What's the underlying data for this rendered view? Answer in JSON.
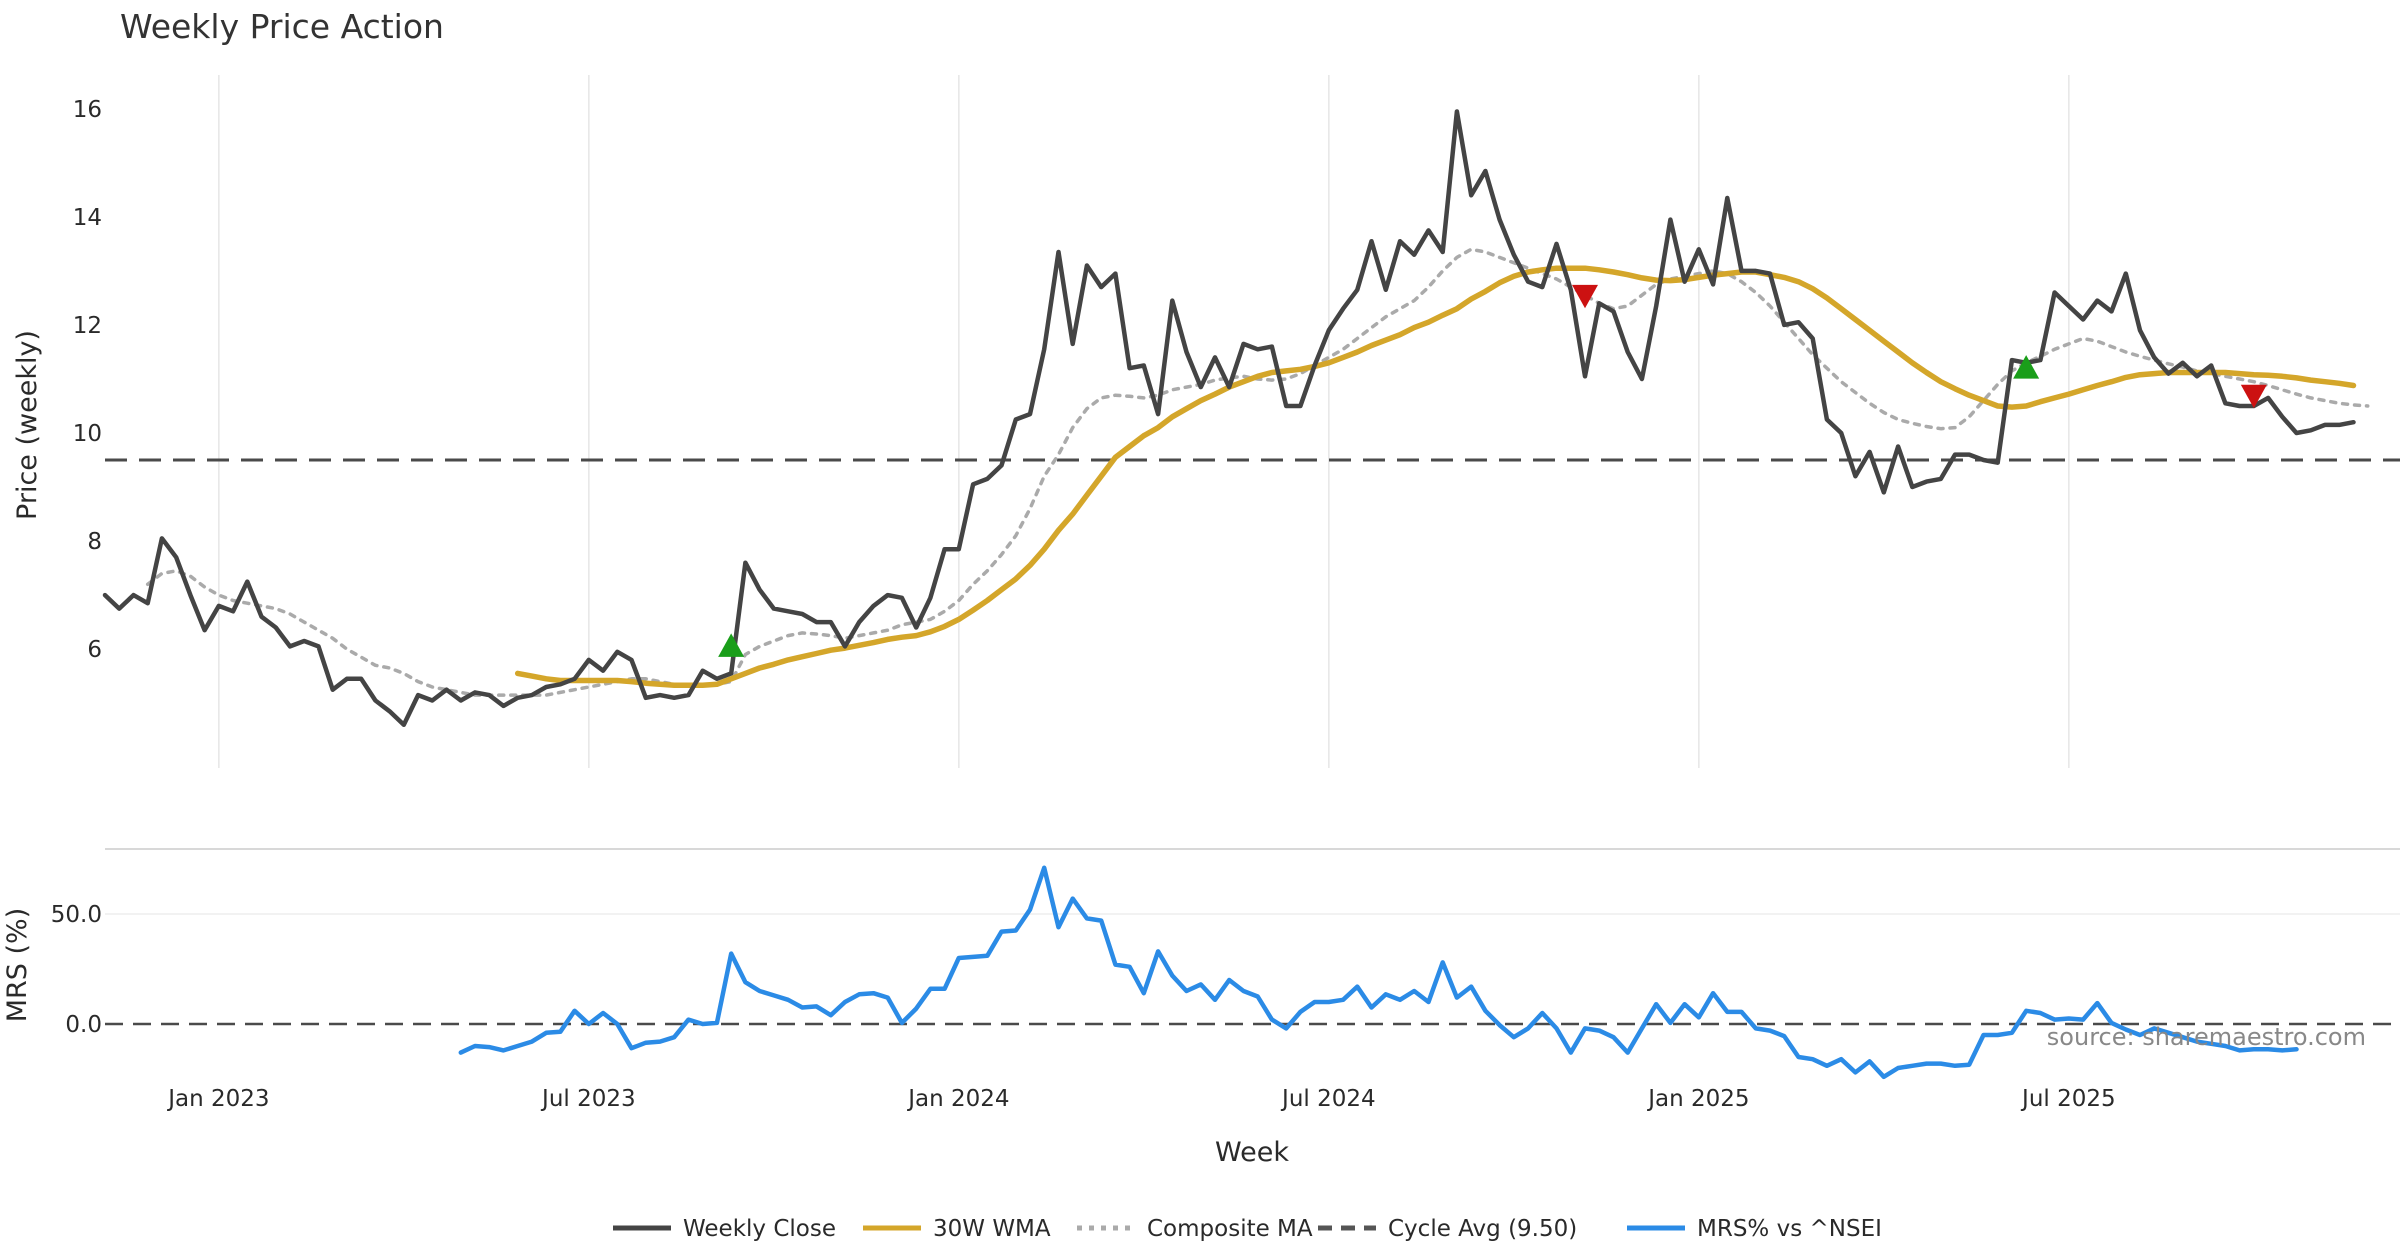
{
  "chart_data": {
    "type": "line",
    "title": "Weekly Price Action",
    "xlabel": "Week",
    "source": "source: sharemaestro.com",
    "x_ticks": [
      "Jan 2023",
      "Jul 2023",
      "Jan 2024",
      "Jul 2024",
      "Jan 2025",
      "Jul 2025"
    ],
    "x_tick_weeks": [
      8,
      34,
      60,
      86,
      112,
      138
    ],
    "price_panel": {
      "ylabel": "Price (weekly)",
      "ylim": [
        3.8,
        16.7
      ],
      "yticks": [
        "6",
        "8",
        "10",
        "12",
        "14",
        "16"
      ],
      "ytick_values": [
        6,
        8,
        10,
        12,
        14,
        16
      ],
      "grid": "vertical"
    },
    "mrs_panel": {
      "ylabel": "MRS (%)",
      "ylim": [
        -30,
        80
      ],
      "yticks": [
        "0.0",
        "50.0"
      ],
      "ytick_values": [
        0,
        50
      ]
    },
    "cycle_avg": 9.5,
    "series": [
      {
        "name": "Weekly Close",
        "color": "#444444",
        "x_start": 0,
        "values": [
          7.0,
          6.75,
          7.0,
          6.85,
          8.05,
          7.7,
          7.0,
          6.35,
          6.8,
          6.7,
          7.25,
          6.6,
          6.4,
          6.05,
          6.15,
          6.05,
          5.25,
          5.45,
          5.45,
          5.05,
          4.85,
          4.6,
          5.15,
          5.05,
          5.25,
          5.05,
          5.2,
          5.15,
          4.95,
          5.1,
          5.15,
          5.3,
          5.35,
          5.45,
          5.8,
          5.6,
          5.95,
          5.8,
          5.1,
          5.15,
          5.1,
          5.15,
          5.6,
          5.45,
          5.55,
          7.6,
          7.1,
          6.75,
          6.7,
          6.65,
          6.5,
          6.5,
          6.05,
          6.5,
          6.8,
          7.0,
          6.95,
          6.4,
          6.95,
          7.85,
          7.85,
          9.05,
          9.15,
          9.4,
          10.25,
          10.35,
          11.55,
          13.35,
          11.65,
          13.1,
          12.7,
          12.95,
          11.2,
          11.25,
          10.35,
          12.45,
          11.5,
          10.85,
          11.4,
          10.85,
          11.65,
          11.55,
          11.6,
          10.5,
          10.5,
          11.25,
          11.9,
          12.3,
          12.65,
          13.55,
          12.65,
          13.55,
          13.3,
          13.75,
          13.35,
          15.95,
          14.4,
          14.85,
          13.95,
          13.3,
          12.8,
          12.7,
          13.5,
          12.65,
          11.05,
          12.4,
          12.25,
          11.5,
          11.0,
          12.35,
          13.95,
          12.8,
          13.4,
          12.75,
          14.35,
          13.0,
          13.0,
          12.95,
          12.0,
          12.05,
          11.75,
          10.25,
          10.0,
          9.2,
          9.65,
          8.9,
          9.75,
          9.0,
          9.1,
          9.15,
          9.6,
          9.6,
          9.5,
          9.45,
          11.35,
          11.3,
          11.35,
          12.6,
          12.35,
          12.1,
          12.45,
          12.25,
          12.95,
          11.9,
          11.4,
          11.1,
          11.3,
          11.05,
          11.25,
          10.55,
          10.5,
          10.5,
          10.65,
          10.3,
          10.0,
          10.05,
          10.15,
          10.15,
          10.2
        ]
      },
      {
        "name": "30W WMA",
        "color": "#d4a62a",
        "x_start": 29,
        "values": [
          5.55,
          5.5,
          5.45,
          5.42,
          5.42,
          5.42,
          5.42,
          5.42,
          5.4,
          5.37,
          5.35,
          5.33,
          5.33,
          5.33,
          5.35,
          5.45,
          5.55,
          5.65,
          5.72,
          5.8,
          5.86,
          5.92,
          5.98,
          6.02,
          6.07,
          6.12,
          6.18,
          6.22,
          6.25,
          6.32,
          6.42,
          6.55,
          6.72,
          6.9,
          7.1,
          7.3,
          7.55,
          7.85,
          8.2,
          8.5,
          8.85,
          9.2,
          9.55,
          9.75,
          9.95,
          10.1,
          10.3,
          10.45,
          10.6,
          10.72,
          10.85,
          10.95,
          11.05,
          11.12,
          11.15,
          11.18,
          11.23,
          11.3,
          11.4,
          11.5,
          11.62,
          11.72,
          11.82,
          11.95,
          12.05,
          12.18,
          12.3,
          12.48,
          12.62,
          12.78,
          12.9,
          12.98,
          13.02,
          13.05,
          13.05,
          13.05,
          13.02,
          12.98,
          12.93,
          12.87,
          12.83,
          12.82,
          12.84,
          12.88,
          12.92,
          12.95,
          12.98,
          12.98,
          12.93,
          12.88,
          12.8,
          12.67,
          12.5,
          12.3,
          12.1,
          11.9,
          11.7,
          11.5,
          11.3,
          11.12,
          10.95,
          10.82,
          10.7,
          10.6,
          10.5,
          10.48,
          10.5,
          10.58,
          10.65,
          10.72,
          10.8,
          10.88,
          10.95,
          11.03,
          11.08,
          11.1,
          11.12,
          11.12,
          11.12,
          11.12,
          11.12,
          11.1,
          11.08,
          11.07,
          11.05,
          11.02,
          10.98,
          10.95,
          10.92,
          10.88
        ]
      },
      {
        "name": "Composite MA",
        "color": "#aaaaaa",
        "x_start": 3,
        "values": [
          7.2,
          7.4,
          7.45,
          7.35,
          7.15,
          7.0,
          6.9,
          6.85,
          6.8,
          6.75,
          6.65,
          6.5,
          6.35,
          6.2,
          6.0,
          5.85,
          5.7,
          5.65,
          5.55,
          5.4,
          5.3,
          5.25,
          5.2,
          5.15,
          5.15,
          5.15,
          5.15,
          5.15,
          5.15,
          5.2,
          5.25,
          5.3,
          5.35,
          5.4,
          5.45,
          5.45,
          5.4,
          5.35,
          5.33,
          5.32,
          5.35,
          5.4,
          5.9,
          6.05,
          6.15,
          6.25,
          6.3,
          6.28,
          6.25,
          6.2,
          6.25,
          6.3,
          6.35,
          6.45,
          6.5,
          6.55,
          6.7,
          6.9,
          7.2,
          7.45,
          7.75,
          8.1,
          8.6,
          9.2,
          9.6,
          10.1,
          10.45,
          10.65,
          10.7,
          10.68,
          10.65,
          10.7,
          10.8,
          10.85,
          10.9,
          10.98,
          11.02,
          11.05,
          11.0,
          10.98,
          11.0,
          11.1,
          11.25,
          11.4,
          11.55,
          11.75,
          11.95,
          12.15,
          12.3,
          12.45,
          12.7,
          13.0,
          13.25,
          13.4,
          13.35,
          13.25,
          13.15,
          13.05,
          12.95,
          12.85,
          12.7,
          12.55,
          12.4,
          12.3,
          12.35,
          12.55,
          12.75,
          12.85,
          12.9,
          12.95,
          13.0,
          12.95,
          12.8,
          12.6,
          12.35,
          12.05,
          11.75,
          11.45,
          11.2,
          10.95,
          10.75,
          10.55,
          10.38,
          10.25,
          10.18,
          10.12,
          10.08,
          10.1,
          10.3,
          10.6,
          10.9,
          11.15,
          11.3,
          11.42,
          11.55,
          11.65,
          11.75,
          11.7,
          11.6,
          11.5,
          11.42,
          11.35,
          11.28,
          11.22,
          11.15,
          11.1,
          11.05,
          11.0,
          10.95,
          10.88,
          10.8,
          10.72,
          10.65,
          10.6,
          10.55,
          10.52,
          10.5
        ]
      }
    ],
    "signals": [
      {
        "type": "buy",
        "color": "#1a9e1a",
        "week": 44,
        "value": 6.05
      },
      {
        "type": "sell",
        "color": "#cc1111",
        "week": 104,
        "value": 12.55
      },
      {
        "type": "buy",
        "color": "#1a9e1a",
        "week": 135,
        "value": 11.2
      },
      {
        "type": "sell",
        "color": "#cc1111",
        "week": 151,
        "value": 10.7
      }
    ],
    "mrs_series": {
      "name": "MRS% vs ^NSEI",
      "color": "#2b8be6",
      "x_start": 25,
      "values": [
        -13,
        -10,
        -10.5,
        -12,
        -10,
        -8,
        -4,
        -3.5,
        6,
        0,
        5,
        0,
        -11,
        -8.5,
        -8,
        -6,
        2,
        0,
        0.5,
        32,
        19,
        15,
        13,
        11,
        7.5,
        8,
        4,
        10,
        13.5,
        14,
        12,
        0.5,
        7,
        16,
        16,
        30,
        30.5,
        31,
        42,
        42.5,
        52,
        71,
        44,
        57,
        48,
        47,
        27,
        26,
        14,
        33,
        22,
        15,
        18,
        11,
        20,
        15,
        12.5,
        2,
        -2,
        5.5,
        10,
        10,
        11,
        17,
        7.5,
        13.5,
        11,
        15,
        10,
        28,
        12,
        17,
        6,
        -0.5,
        -6,
        -2,
        5,
        -2,
        -13,
        -2,
        -3,
        -6,
        -13,
        -2,
        9,
        0.5,
        9,
        3,
        14,
        5.5,
        5.5,
        -2,
        -3,
        -5.5,
        -15,
        -16,
        -19,
        -16,
        -22,
        -17,
        -24,
        -20,
        -19,
        -18,
        -18,
        -19,
        -18.5,
        -5,
        -5,
        -4,
        6,
        5,
        2,
        2.5,
        2,
        9.5,
        0.5,
        -2.5,
        -5,
        -2,
        -4,
        -6,
        -8,
        -9,
        -10,
        -12,
        -11.5,
        -11.5,
        -12,
        -11.5
      ]
    },
    "legend": {
      "placement": "bottom-center",
      "items": [
        {
          "label": "Weekly Close",
          "color": "#444444",
          "style": "solid"
        },
        {
          "label": "30W WMA",
          "color": "#d4a62a",
          "style": "solid"
        },
        {
          "label": "Composite MA",
          "color": "#aaaaaa",
          "style": "dotted"
        },
        {
          "label": "Cycle Avg (9.50)",
          "color": "#555555",
          "style": "dashed"
        },
        {
          "label": "MRS% vs ^NSEI",
          "color": "#2b8be6",
          "style": "solid"
        }
      ]
    }
  }
}
